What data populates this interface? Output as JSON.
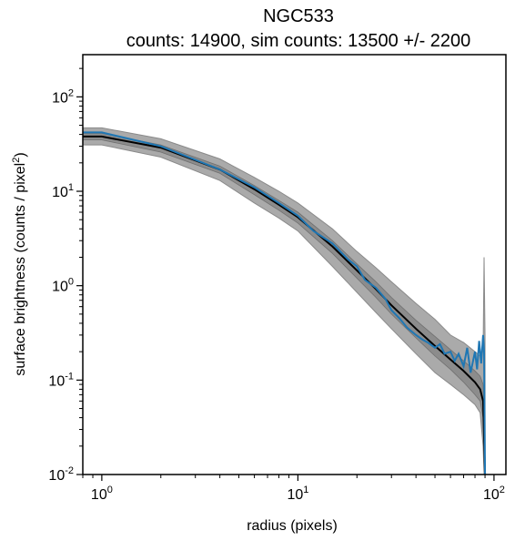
{
  "chart_data": {
    "type": "line",
    "title_lines": [
      "NGC533",
      "counts: 14900, sim counts: 13500 +/- 2200"
    ],
    "xlabel": "radius (pixels)",
    "ylabel": {
      "main": "surface brightness (counts / pixel",
      "sup": "2",
      "close": ")"
    },
    "xscale": "log",
    "yscale": "log",
    "xlim": [
      0.8,
      115
    ],
    "ylim": [
      0.01,
      280
    ],
    "x_ticks": [
      {
        "value": 1,
        "base": "10",
        "exp": "0"
      },
      {
        "value": 10,
        "base": "10",
        "exp": "1"
      },
      {
        "value": 100,
        "base": "10",
        "exp": "2"
      }
    ],
    "y_ticks": [
      {
        "value": 0.01,
        "base": "10",
        "exp": "-2"
      },
      {
        "value": 0.1,
        "base": "10",
        "exp": "-1"
      },
      {
        "value": 1,
        "base": "10",
        "exp": "0"
      },
      {
        "value": 10,
        "base": "10",
        "exp": "1"
      },
      {
        "value": 100,
        "base": "10",
        "exp": "2"
      }
    ],
    "grid": false,
    "colors": {
      "observed": "#1f77b4",
      "sim_median": "#000000",
      "band_outer": "#aaaaaa",
      "band_inner": "#8c8c8c"
    },
    "series": [
      {
        "role": "sim_median",
        "x": [
          0.8,
          1,
          2,
          4,
          6,
          8,
          10,
          15,
          20,
          25,
          30,
          40,
          50,
          60,
          70,
          80,
          85,
          88,
          90
        ],
        "y": [
          38,
          38,
          29,
          17,
          10.5,
          7.2,
          5.3,
          2.6,
          1.45,
          0.92,
          0.62,
          0.35,
          0.23,
          0.165,
          0.125,
          0.095,
          0.08,
          0.06,
          0.01
        ]
      },
      {
        "role": "observed",
        "x": [
          0.8,
          1,
          2,
          4,
          6,
          8,
          10,
          12,
          15,
          18,
          20,
          22,
          25,
          28,
          30,
          33,
          36,
          40,
          43,
          46,
          50,
          53,
          56,
          60,
          63,
          66,
          70,
          73,
          76,
          80,
          82,
          84,
          86,
          88,
          89,
          90
        ],
        "y": [
          42,
          42,
          30,
          17,
          11,
          7.5,
          5.5,
          3.8,
          2.8,
          1.9,
          1.6,
          1.15,
          0.95,
          0.72,
          0.55,
          0.45,
          0.36,
          0.3,
          0.27,
          0.25,
          0.22,
          0.24,
          0.19,
          0.2,
          0.16,
          0.19,
          0.14,
          0.22,
          0.12,
          0.2,
          0.13,
          0.26,
          0.15,
          0.3,
          0.2,
          0.01
        ]
      },
      {
        "role": "band_outer",
        "x": [
          0.8,
          1,
          2,
          4,
          6,
          8,
          10,
          15,
          20,
          25,
          30,
          40,
          50,
          60,
          70,
          80,
          85,
          88,
          89,
          90
        ],
        "upper": [
          47,
          47,
          36,
          22,
          14,
          10,
          7.5,
          4,
          2.3,
          1.55,
          1.1,
          0.65,
          0.44,
          0.3,
          0.25,
          0.2,
          0.18,
          0.2,
          2.0,
          0.3
        ],
        "lower": [
          31,
          31,
          23,
          13,
          7.5,
          5.2,
          3.8,
          1.6,
          0.85,
          0.52,
          0.35,
          0.19,
          0.12,
          0.09,
          0.07,
          0.055,
          0.045,
          0.02,
          0.01,
          0.01
        ]
      },
      {
        "role": "band_inner",
        "x": [
          0.8,
          1,
          2,
          4,
          6,
          8,
          10,
          15,
          20,
          25,
          30,
          40,
          50,
          60,
          70,
          80,
          85,
          88,
          90
        ],
        "upper": [
          41,
          41,
          31,
          18.5,
          11.5,
          8,
          6,
          3,
          1.7,
          1.1,
          0.75,
          0.43,
          0.29,
          0.21,
          0.16,
          0.125,
          0.11,
          0.09,
          0.02
        ],
        "lower": [
          35,
          35,
          26,
          15.5,
          9.2,
          6.3,
          4.6,
          2.2,
          1.2,
          0.75,
          0.5,
          0.28,
          0.18,
          0.13,
          0.095,
          0.07,
          0.06,
          0.04,
          0.01
        ]
      }
    ]
  }
}
